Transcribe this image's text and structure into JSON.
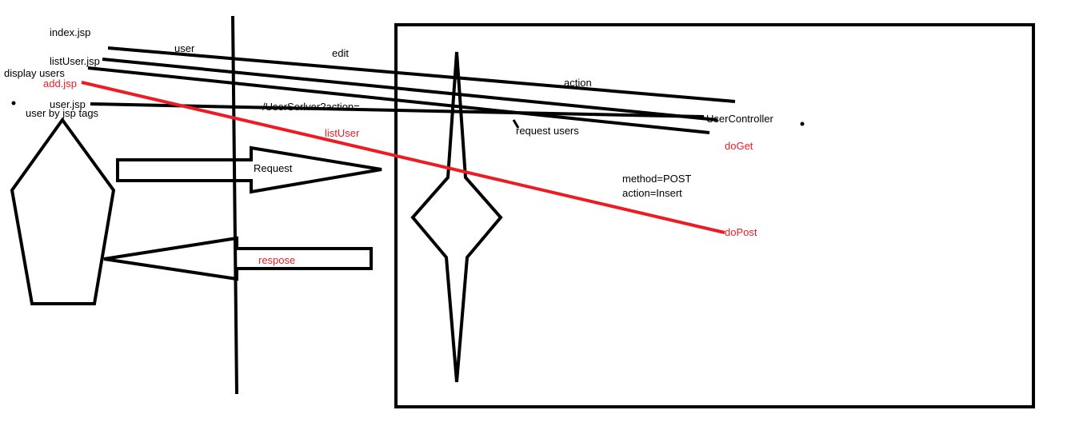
{
  "colors": {
    "ink": "#000000",
    "accent": "#ed1c24",
    "background": "#ffffff"
  },
  "labels": {
    "index_jsp": "index.jsp",
    "list_user_jsp": "listUser.jsp",
    "display_users": "display users",
    "add_jsp": "add.jsp",
    "user_jsp": "user.jsp",
    "user_by_jsp_tags": "user by jsp tags",
    "user": "user",
    "edit": "edit",
    "action": "action",
    "servlet_url": "/UserSerlver?action=",
    "user_controller": "UserController",
    "request_users": "request  users",
    "do_get": "doGet",
    "list_user": "listUser",
    "request": "Request",
    "method_post": "method=POST",
    "action_insert": "action=Insert",
    "do_post": "doPost",
    "respose": "respose"
  }
}
